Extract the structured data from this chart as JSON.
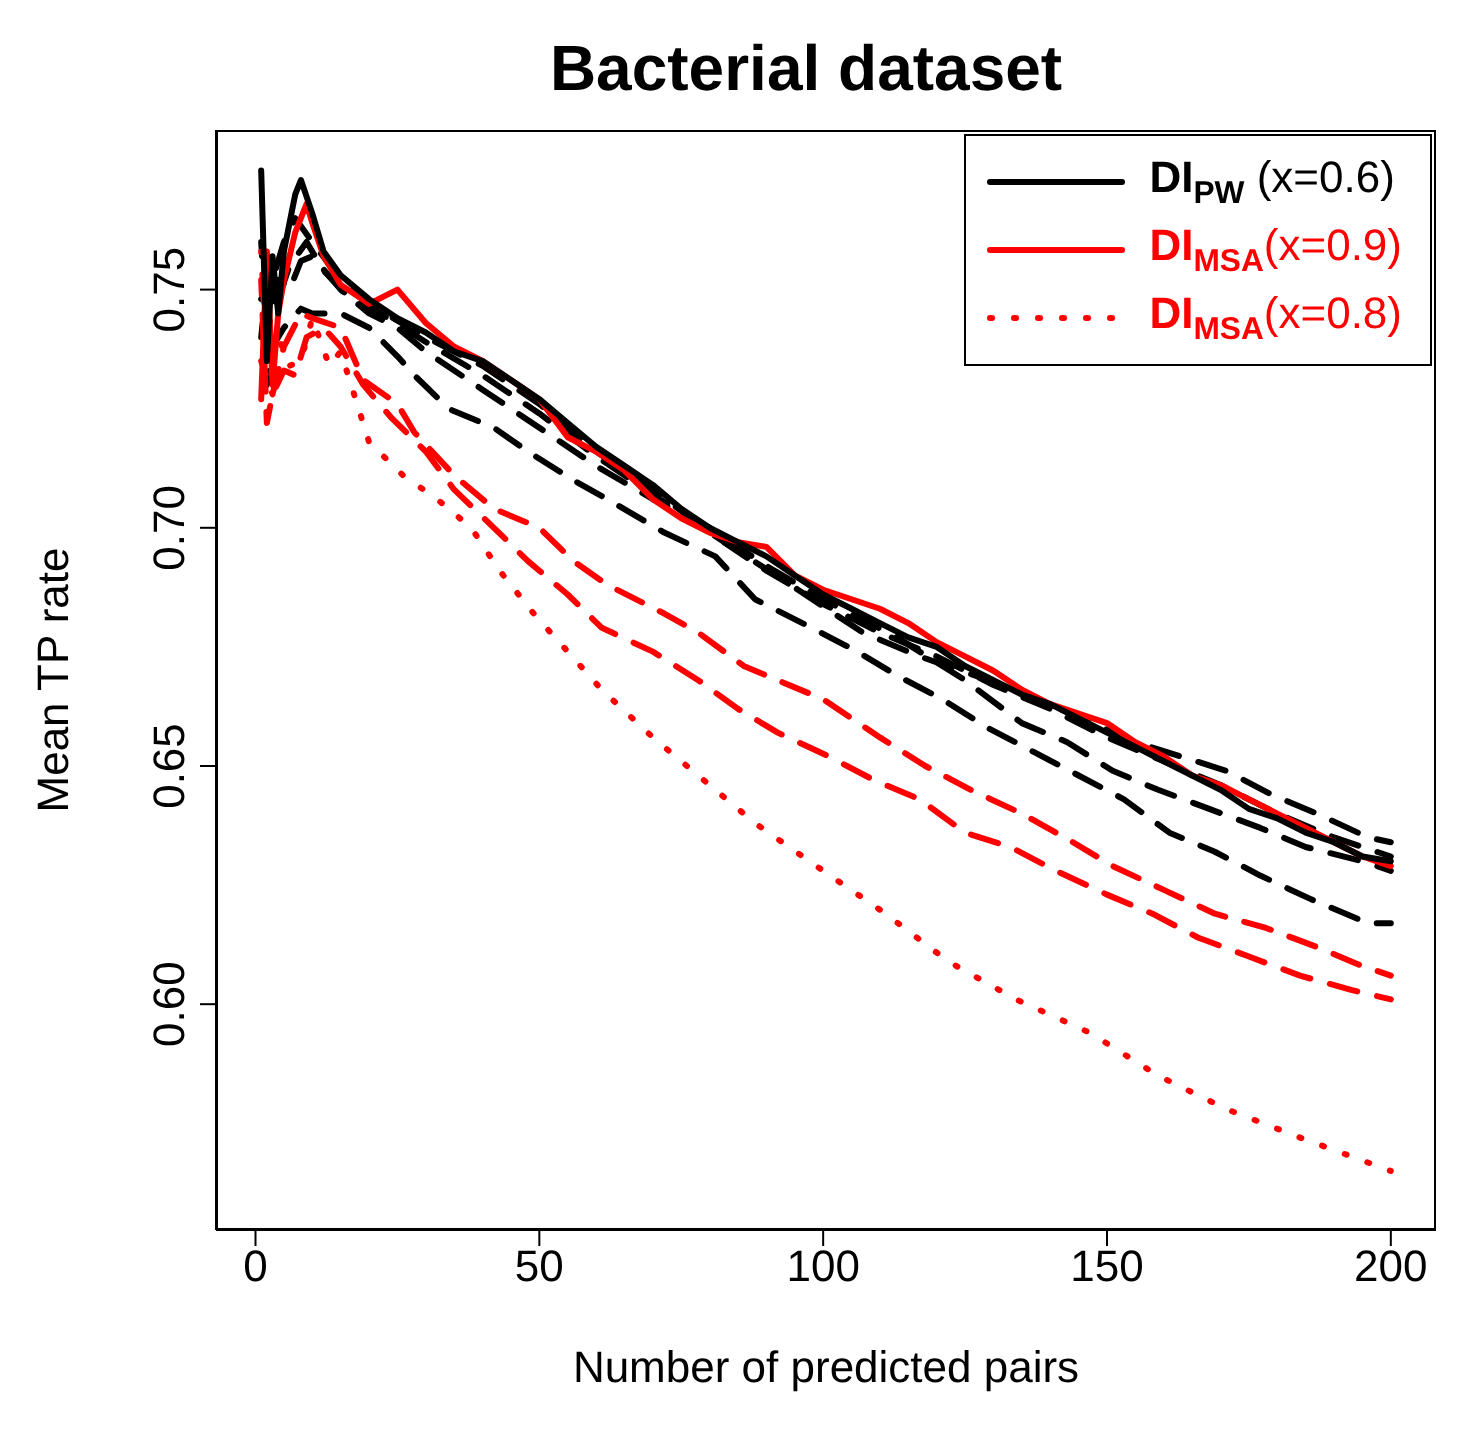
{
  "chart_data": {
    "type": "line",
    "title": "Bacterial dataset",
    "xlabel": "Number of predicted pairs",
    "ylabel": "Mean TP rate",
    "xlim": [
      -6.96,
      207.96
    ],
    "ylim": [
      0.5526,
      0.7835
    ],
    "xticks": [
      0,
      50,
      100,
      150,
      200
    ],
    "yticks": [
      {
        "value": 0.6,
        "label": "0.60"
      },
      {
        "value": 0.65,
        "label": "0.65"
      },
      {
        "value": 0.7,
        "label": "0.70"
      },
      {
        "value": 0.75,
        "label": "0.75"
      }
    ],
    "legend": "top right",
    "series": [
      {
        "name": "DI$_{PW}$ (x=0.6)",
        "color": "#000000",
        "line_style": "solid",
        "x": [
          1,
          2,
          3,
          4,
          5,
          6,
          7,
          8,
          10,
          12,
          15,
          20,
          25,
          30,
          35,
          40,
          45,
          50,
          55,
          60,
          65,
          70,
          75,
          80,
          85,
          90,
          95,
          100,
          105,
          110,
          115,
          120,
          125,
          130,
          135,
          140,
          145,
          150,
          155,
          160,
          165,
          170,
          175,
          180,
          185,
          190,
          195,
          200
        ],
        "values": [
          0.775,
          0.735,
          0.757,
          0.745,
          0.758,
          0.764,
          0.77,
          0.773,
          0.766,
          0.758,
          0.753,
          0.748,
          0.744,
          0.741,
          0.737,
          0.735,
          0.731,
          0.727,
          0.722,
          0.717,
          0.713,
          0.709,
          0.704,
          0.7,
          0.697,
          0.694,
          0.69,
          0.686,
          0.683,
          0.68,
          0.677,
          0.675,
          0.671,
          0.668,
          0.665,
          0.663,
          0.66,
          0.657,
          0.654,
          0.651,
          0.648,
          0.645,
          0.641,
          0.639,
          0.636,
          0.634,
          0.631,
          0.63
        ]
      },
      {
        "name": "DI$_{MSA}$(x=0.9)",
        "color": "#ff0000",
        "line_style": "solid",
        "x": [
          1,
          2,
          3,
          4,
          5,
          6,
          7,
          9,
          10,
          12,
          15,
          20,
          25,
          30,
          35,
          40,
          45,
          50,
          55,
          60,
          65,
          70,
          75,
          80,
          85,
          90,
          95,
          100,
          105,
          110,
          115,
          120,
          125,
          130,
          135,
          140,
          145,
          150,
          155,
          160,
          165,
          170,
          175,
          180,
          185,
          190,
          195,
          200
        ],
        "values": [
          0.727,
          0.758,
          0.73,
          0.745,
          0.752,
          0.757,
          0.762,
          0.768,
          0.764,
          0.757,
          0.751,
          0.747,
          0.75,
          0.743,
          0.738,
          0.735,
          0.731,
          0.727,
          0.719,
          0.716,
          0.712,
          0.706,
          0.702,
          0.699,
          0.697,
          0.696,
          0.69,
          0.687,
          0.685,
          0.683,
          0.68,
          0.676,
          0.673,
          0.67,
          0.666,
          0.663,
          0.661,
          0.659,
          0.655,
          0.652,
          0.648,
          0.646,
          0.643,
          0.64,
          0.637,
          0.634,
          0.631,
          0.629
        ]
      },
      {
        "name": "DI$_{MSA}$(x=0.8)",
        "color": "#ff0000",
        "line_style": "dotted",
        "x": [
          1,
          2,
          4,
          6,
          8,
          10,
          13,
          15,
          20,
          26,
          32,
          38,
          43,
          49,
          55,
          61,
          70,
          80,
          88,
          100,
          111,
          122,
          134,
          147,
          159,
          171,
          184,
          200
        ],
        "values": [
          0.758,
          0.735,
          0.74,
          0.734,
          0.735,
          0.744,
          0.734,
          0.737,
          0.718,
          0.711,
          0.706,
          0.7,
          0.691,
          0.682,
          0.674,
          0.666,
          0.656,
          0.646,
          0.638,
          0.628,
          0.619,
          0.609,
          0.601,
          0.594,
          0.585,
          0.578,
          0.572,
          0.565
        ]
      },
      {
        "color": "#ff0000",
        "line_style": "dashed",
        "x": [
          1,
          3,
          5,
          8,
          10,
          15,
          19,
          25,
          28,
          35,
          42,
          50,
          56,
          62,
          72,
          78,
          86,
          100,
          110,
          118,
          126,
          135,
          144,
          151,
          160,
          169,
          178,
          187,
          195,
          200
        ],
        "values": [
          0.735,
          0.728,
          0.738,
          0.745,
          0.744,
          0.742,
          0.731,
          0.726,
          0.72,
          0.711,
          0.704,
          0.7,
          0.693,
          0.688,
          0.682,
          0.678,
          0.671,
          0.664,
          0.656,
          0.65,
          0.645,
          0.64,
          0.634,
          0.629,
          0.624,
          0.619,
          0.616,
          0.612,
          0.608,
          0.606
        ]
      },
      {
        "color": "#ff0000",
        "line_style": "dashed",
        "x": [
          1,
          2,
          3,
          5,
          7,
          9,
          12,
          15,
          19,
          24,
          30,
          35,
          42,
          48,
          55,
          61,
          70,
          78,
          85,
          92,
          101,
          109,
          117,
          125,
          133,
          141,
          150,
          158,
          166,
          175,
          184,
          193,
          200
        ],
        "values": [
          0.752,
          0.722,
          0.728,
          0.733,
          0.732,
          0.74,
          0.742,
          0.738,
          0.73,
          0.723,
          0.716,
          0.708,
          0.7,
          0.693,
          0.686,
          0.679,
          0.674,
          0.668,
          0.662,
          0.657,
          0.652,
          0.647,
          0.643,
          0.636,
          0.633,
          0.628,
          0.623,
          0.619,
          0.614,
          0.61,
          0.606,
          0.603,
          0.601
        ]
      },
      {
        "color": "#000000",
        "line_style": "dashed",
        "x": [
          2,
          3,
          5,
          8,
          10,
          15,
          20,
          25,
          28,
          34,
          42,
          48,
          56,
          62,
          72,
          81,
          88,
          98,
          106,
          113,
          121,
          129,
          137,
          145,
          153,
          161,
          169,
          177,
          186,
          196,
          200
        ],
        "values": [
          0.73,
          0.738,
          0.742,
          0.746,
          0.745,
          0.745,
          0.742,
          0.736,
          0.732,
          0.725,
          0.721,
          0.716,
          0.71,
          0.706,
          0.699,
          0.694,
          0.685,
          0.679,
          0.674,
          0.669,
          0.664,
          0.658,
          0.653,
          0.648,
          0.643,
          0.636,
          0.632,
          0.627,
          0.622,
          0.617,
          0.617
        ]
      },
      {
        "color": "#000000",
        "line_style": "dashed",
        "x": [
          1,
          2,
          4,
          6,
          8,
          10,
          15,
          20,
          25,
          30,
          40,
          50,
          60,
          70,
          80,
          90,
          100,
          113,
          125,
          135,
          143,
          151,
          159,
          168,
          177,
          185,
          195,
          200
        ],
        "values": [
          0.76,
          0.74,
          0.752,
          0.75,
          0.756,
          0.757,
          0.75,
          0.745,
          0.742,
          0.737,
          0.729,
          0.721,
          0.713,
          0.706,
          0.7,
          0.692,
          0.685,
          0.677,
          0.668,
          0.659,
          0.655,
          0.649,
          0.645,
          0.641,
          0.637,
          0.633,
          0.63,
          0.628
        ]
      },
      {
        "color": "#000000",
        "line_style": "dashed",
        "x": [
          1,
          3,
          5,
          7,
          10,
          15,
          20,
          30,
          40,
          50,
          60,
          70,
          80,
          93,
          107,
          117,
          134,
          155,
          171,
          179,
          187,
          196,
          200
        ],
        "values": [
          0.748,
          0.752,
          0.76,
          0.765,
          0.76,
          0.752,
          0.747,
          0.74,
          0.734,
          0.726,
          0.716,
          0.708,
          0.699,
          0.689,
          0.678,
          0.673,
          0.666,
          0.655,
          0.649,
          0.644,
          0.64,
          0.635,
          0.634
        ]
      },
      {
        "color": "#000000",
        "line_style": "dashed",
        "x": [
          1,
          2,
          4,
          6,
          9,
          12,
          16,
          22,
          30,
          40,
          50,
          60,
          70,
          80,
          90,
          100,
          110,
          120,
          130,
          140,
          150,
          160,
          170,
          180,
          190,
          200
        ],
        "values": [
          0.74,
          0.752,
          0.748,
          0.755,
          0.76,
          0.754,
          0.749,
          0.745,
          0.739,
          0.732,
          0.724,
          0.715,
          0.707,
          0.699,
          0.691,
          0.684,
          0.678,
          0.673,
          0.667,
          0.662,
          0.656,
          0.651,
          0.646,
          0.64,
          0.635,
          0.631
        ]
      }
    ]
  }
}
